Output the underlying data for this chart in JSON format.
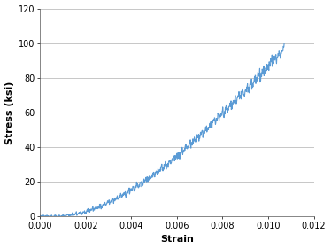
{
  "title": "",
  "xlabel": "Strain",
  "ylabel": "Stress (ksi)",
  "xlim": [
    0.0,
    0.012
  ],
  "ylim": [
    0,
    120
  ],
  "xticks": [
    0.0,
    0.002,
    0.004,
    0.006,
    0.008,
    0.01,
    0.012
  ],
  "yticks": [
    0,
    20,
    40,
    60,
    80,
    100,
    120
  ],
  "line_color": "#5b9bd5",
  "line_width": 0.8,
  "grid_color": "#b0b0b0",
  "grid_linewidth": 0.5,
  "background_color": "#ffffff",
  "figsize": [
    3.74,
    2.81
  ],
  "dpi": 100,
  "key_x": [
    0.0,
    0.001,
    0.0015,
    0.002,
    0.003,
    0.004,
    0.005,
    0.006,
    0.007,
    0.008,
    0.009,
    0.01,
    0.0107
  ],
  "key_y": [
    0.3,
    0.8,
    1.5,
    3.0,
    7.5,
    15.0,
    24.0,
    36.0,
    47.0,
    59.0,
    73.0,
    86.0,
    97.0
  ]
}
